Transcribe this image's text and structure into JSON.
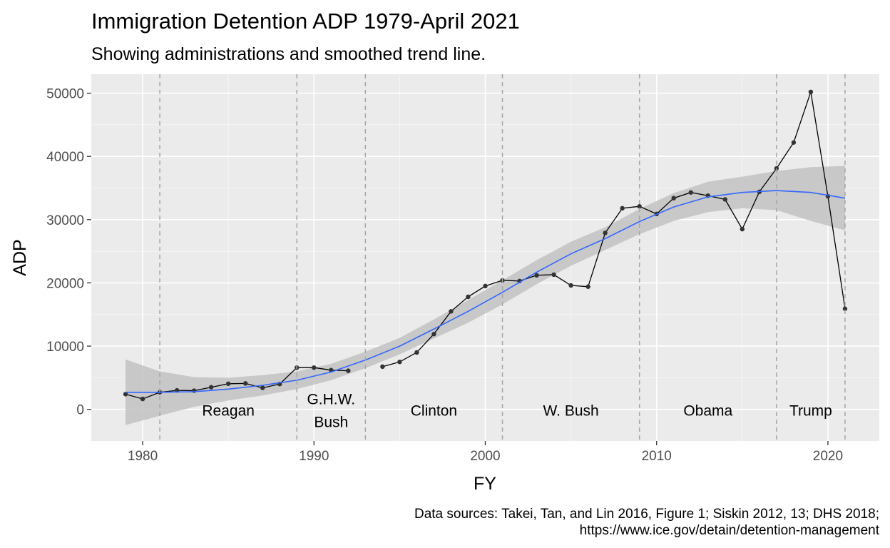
{
  "chart_data": {
    "type": "line",
    "title": "Immigration Detention ADP 1979-April 2021",
    "subtitle": "Showing administrations and smoothed trend line.",
    "xlabel": "FY",
    "ylabel": "ADP",
    "xlim": [
      1977,
      2023
    ],
    "ylim": [
      -5000,
      53000
    ],
    "x_ticks": [
      1980,
      1990,
      2000,
      2010,
      2020
    ],
    "y_ticks": [
      0,
      10000,
      20000,
      30000,
      40000,
      50000
    ],
    "grid": true,
    "legend": "none",
    "series": [
      {
        "segments": [
          [
            [
              1979,
              2400
            ],
            [
              1980,
              1650
            ],
            [
              1981,
              2700
            ],
            [
              1982,
              3000
            ],
            [
              1983,
              2950
            ],
            [
              1984,
              3500
            ],
            [
              1985,
              4050
            ],
            [
              1986,
              4100
            ],
            [
              1987,
              3400
            ],
            [
              1988,
              4000
            ],
            [
              1989,
              6600
            ],
            [
              1990,
              6600
            ],
            [
              1991,
              6200
            ],
            [
              1992,
              6100
            ]
          ],
          [
            [
              1994,
              6750
            ],
            [
              1995,
              7500
            ],
            [
              1996,
              9000
            ],
            [
              1997,
              11900
            ],
            [
              1998,
              15500
            ],
            [
              1999,
              17800
            ],
            [
              2000,
              19500
            ],
            [
              2001,
              20400
            ],
            [
              2002,
              20300
            ],
            [
              2003,
              21200
            ],
            [
              2004,
              21300
            ],
            [
              2005,
              19600
            ],
            [
              2006,
              19400
            ],
            [
              2007,
              27900
            ],
            [
              2008,
              31800
            ],
            [
              2009,
              32100
            ],
            [
              2010,
              30900
            ],
            [
              2011,
              33400
            ],
            [
              2012,
              34300
            ],
            [
              2013,
              33800
            ],
            [
              2014,
              33200
            ],
            [
              2015,
              28500
            ],
            [
              2016,
              34400
            ],
            [
              2017,
              38100
            ],
            [
              2018,
              42200
            ],
            [
              2019,
              50200
            ],
            [
              2020,
              33700
            ],
            [
              2021,
              15900
            ]
          ]
        ]
      }
    ],
    "trend": {
      "x": [
        1979,
        1981,
        1983,
        1985,
        1987,
        1989,
        1991,
        1993,
        1995,
        1997,
        1999,
        2001,
        2003,
        2005,
        2007,
        2009,
        2011,
        2013,
        2015,
        2017,
        2019,
        2021
      ],
      "y": [
        2700,
        2700,
        2800,
        3200,
        3800,
        4600,
        5900,
        7800,
        10000,
        12700,
        15500,
        18500,
        21700,
        24600,
        27000,
        29700,
        32000,
        33600,
        34300,
        34600,
        34300,
        33400
      ],
      "lower": [
        -2500,
        -1000,
        400,
        1400,
        2200,
        3200,
        4600,
        6500,
        8700,
        11200,
        13700,
        16600,
        19800,
        22700,
        25200,
        27700,
        29800,
        31200,
        31800,
        31500,
        29800,
        28300
      ],
      "upper": [
        7900,
        6000,
        5100,
        5000,
        5400,
        6000,
        7200,
        9100,
        11300,
        14200,
        17300,
        20400,
        23600,
        26500,
        28800,
        31700,
        34200,
        36000,
        36800,
        37700,
        38300,
        38500
      ]
    },
    "administration_boundaries": [
      1981,
      1989,
      1993,
      2001,
      2009,
      2017,
      2021
    ],
    "administrations": [
      {
        "lines": [
          "Reagan"
        ],
        "x": 1985
      },
      {
        "lines": [
          "G.H.W.",
          "Bush"
        ],
        "x": 1991
      },
      {
        "lines": [
          "Clinton"
        ],
        "x": 1997
      },
      {
        "lines": [
          "W. Bush"
        ],
        "x": 2005
      },
      {
        "lines": [
          "Obama"
        ],
        "x": 2013
      },
      {
        "lines": [
          "Trump"
        ],
        "x": 2019
      }
    ],
    "caption": [
      "Data sources: Takei, Tan, and Lin 2016, Figure 1; Siskin 2012, 13; DHS 2018;",
      "https://www.ice.gov/detain/detention-management"
    ],
    "colors": {
      "panel": "#ebebeb",
      "grid_major": "#ffffff",
      "grid_minor": "#f5f5f5",
      "line": "#000000",
      "points": "#333333",
      "trend": "#3366ff",
      "ribbon": "#c2c2c2",
      "vline": "#a6a6a6"
    }
  }
}
